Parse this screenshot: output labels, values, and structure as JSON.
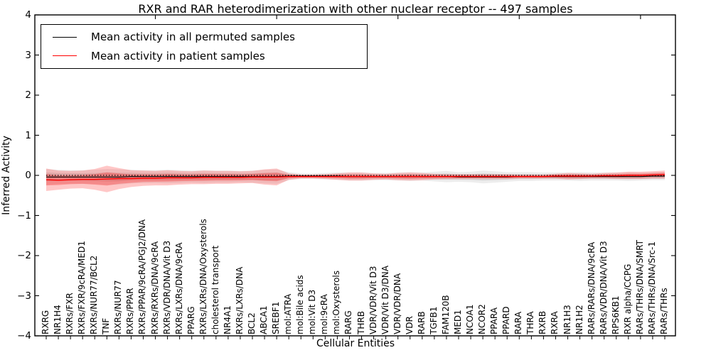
{
  "title": "RXR and RAR heterodimerization with other nuclear receptor -- 497 samples",
  "axes": {
    "ylabel": "Inferred Activity",
    "xlabel": "Cellular Entities"
  },
  "legend": {
    "position": "upper left"
  },
  "colors": {
    "permuted_line": "#000000",
    "patient_line": "#ff0000",
    "permuted_band": "#000000",
    "patient_band": "#ff0000",
    "frame": "#000000"
  },
  "chart_data": {
    "type": "line",
    "title": "RXR and RAR heterodimerization with other nuclear receptor -- 497 samples",
    "xlabel": "Cellular Entities",
    "ylabel": "Inferred Activity",
    "ylim": [
      -4,
      4
    ],
    "yticks": [
      4,
      3,
      2,
      1,
      0,
      -1,
      -2,
      -3,
      -4
    ],
    "grid": false,
    "zero_reference_line": true,
    "legend_position": "upper left",
    "categories": [
      "RXRG",
      "NR1H4",
      "RXRs/FXR",
      "RXRs/FXR/9cRA/MED1",
      "RXRs/NUR77/BCL2",
      "TNF",
      "RXRs/NUR77",
      "RXRs/PPAR",
      "RXRs/PPAR/9cRA/PGJ2/DNA",
      "RXRs/RXRs/DNA/9cRA",
      "RXRs/VDR/DNA/Vit D3",
      "RXRs/LXRs/DNA/9cRA",
      "PPARG",
      "RXRs/LXRs/DNA/Oxysterols",
      "cholesterol transport",
      "NR4A1",
      "RXRs/LXRs/DNA",
      "BCL2",
      "ABCA1",
      "SREBF1",
      "mol:ATRA",
      "mol:Bile acids",
      "mol:Vit D3",
      "mol:9cRA",
      "mol:Oxysterols",
      "RARG",
      "THRB",
      "VDR/VDR/Vit D3",
      "VDR/Vit D3/DNA",
      "VDR/VDR/DNA",
      "VDR",
      "RARB",
      "TGFB1",
      "FAM120B",
      "MED1",
      "NCOA1",
      "NCOR2",
      "PPARA",
      "PPARD",
      "RARA",
      "THRA",
      "RXRB",
      "RXRA",
      "NR1H3",
      "NR1H2",
      "RARs/RARs/DNA/9cRA",
      "RARs/VDR/DNA/Vit D3",
      "RPS6KB1",
      "RXR alpha/CCPG",
      "RARs/THRs/DNA/SMRT",
      "RARs/THRs/DNA/Src-1",
      "RARs/THRs"
    ],
    "series": [
      {
        "name": "Mean activity in all permuted samples",
        "color": "#000000",
        "mean": [
          -0.04,
          -0.04,
          -0.04,
          -0.04,
          -0.04,
          -0.04,
          -0.04,
          -0.03,
          -0.03,
          -0.03,
          -0.03,
          -0.03,
          -0.03,
          -0.03,
          -0.03,
          -0.03,
          -0.03,
          -0.03,
          -0.03,
          -0.03,
          -0.02,
          -0.02,
          -0.02,
          -0.02,
          -0.02,
          -0.03,
          -0.03,
          -0.03,
          -0.03,
          -0.03,
          -0.03,
          -0.03,
          -0.03,
          -0.03,
          -0.04,
          -0.04,
          -0.04,
          -0.04,
          -0.04,
          -0.03,
          -0.03,
          -0.03,
          -0.03,
          -0.03,
          -0.03,
          -0.03,
          -0.03,
          -0.03,
          -0.03,
          -0.03,
          -0.02,
          -0.02
        ],
        "band_halfwidth": [
          0.2,
          0.18,
          0.17,
          0.17,
          0.18,
          0.2,
          0.19,
          0.17,
          0.16,
          0.16,
          0.17,
          0.16,
          0.15,
          0.16,
          0.15,
          0.15,
          0.14,
          0.15,
          0.17,
          0.18,
          0.1,
          0.07,
          0.07,
          0.08,
          0.09,
          0.1,
          0.1,
          0.09,
          0.09,
          0.1,
          0.11,
          0.1,
          0.12,
          0.14,
          0.12,
          0.13,
          0.16,
          0.14,
          0.12,
          0.11,
          0.11,
          0.1,
          0.1,
          0.1,
          0.11,
          0.1,
          0.1,
          0.1,
          0.11,
          0.1,
          0.1,
          0.1
        ]
      },
      {
        "name": "Mean activity in patient samples",
        "color": "#ff0000",
        "mean": [
          -0.11,
          -0.12,
          -0.11,
          -0.1,
          -0.1,
          -0.09,
          -0.08,
          -0.08,
          -0.07,
          -0.07,
          -0.06,
          -0.06,
          -0.06,
          -0.05,
          -0.05,
          -0.05,
          -0.05,
          -0.04,
          -0.04,
          -0.04,
          -0.03,
          -0.03,
          -0.03,
          -0.03,
          -0.03,
          -0.03,
          -0.03,
          -0.03,
          -0.03,
          -0.03,
          -0.03,
          -0.03,
          -0.03,
          -0.03,
          -0.03,
          -0.03,
          -0.03,
          -0.03,
          -0.03,
          -0.03,
          -0.03,
          -0.03,
          -0.02,
          -0.02,
          -0.02,
          -0.02,
          -0.01,
          -0.01,
          0.0,
          0.0,
          0.01,
          0.02
        ],
        "band_halfwidth": [
          0.28,
          0.24,
          0.22,
          0.22,
          0.26,
          0.33,
          0.26,
          0.21,
          0.19,
          0.18,
          0.19,
          0.17,
          0.16,
          0.17,
          0.16,
          0.16,
          0.15,
          0.15,
          0.19,
          0.21,
          0.08,
          0.05,
          0.05,
          0.06,
          0.08,
          0.1,
          0.1,
          0.08,
          0.07,
          0.09,
          0.1,
          0.09,
          0.07,
          0.06,
          0.06,
          0.06,
          0.06,
          0.06,
          0.06,
          0.05,
          0.05,
          0.05,
          0.06,
          0.08,
          0.07,
          0.06,
          0.07,
          0.08,
          0.09,
          0.09,
          0.09,
          0.1
        ]
      }
    ]
  }
}
